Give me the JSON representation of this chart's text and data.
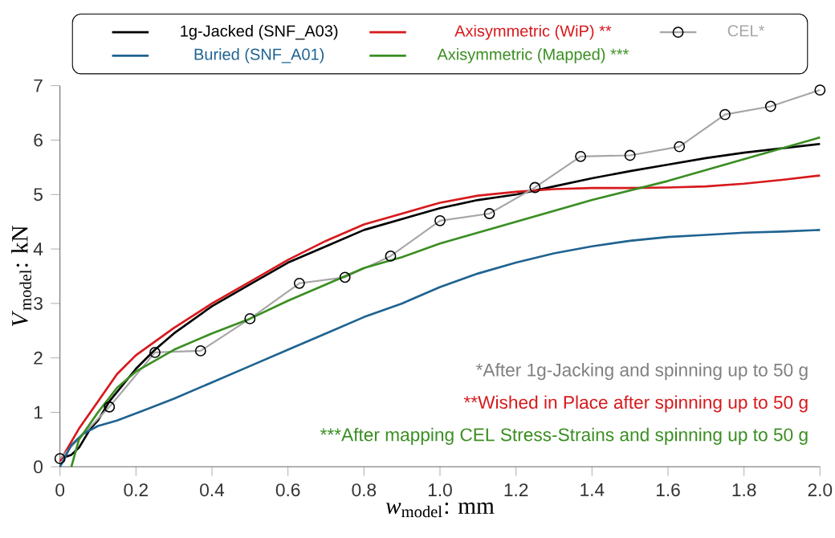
{
  "chart_data": {
    "type": "line",
    "xlabel": "*w*$_{model}$: mm",
    "ylabel": "*V*$_{model}$: kN",
    "xlim": [
      0,
      2.0
    ],
    "ylim": [
      0,
      7
    ],
    "xticks": [
      0,
      0.2,
      0.4,
      0.6,
      0.8,
      {
        "value": 1.0,
        "label": "1.0"
      },
      1.2,
      1.4,
      1.6,
      1.8,
      {
        "value": 2.0,
        "label": "2.0"
      }
    ],
    "yticks": [
      0,
      1,
      2,
      3,
      4,
      5,
      6,
      7
    ],
    "legend": "top",
    "grid": false,
    "marker": "none",
    "line_style": "solid",
    "annotations": [
      "*After 1g-Jacking and spinning up to 50 g",
      "**Wished in Place after spinning up to 50 g",
      "***After mapping CEL Stress-Strains and spinning up to 50 g"
    ],
    "series": [
      {
        "name": "1g-Jacked (SNF_A03)",
        "color": "#000000",
        "x": [
          0,
          0.03,
          0.05,
          0.08,
          0.1,
          0.13,
          0.2,
          0.25,
          0.3,
          0.4,
          0.5,
          0.6,
          0.7,
          0.8,
          0.9,
          1.0,
          1.1,
          1.2,
          1.3,
          1.4,
          1.5,
          1.6,
          1.7,
          1.8,
          1.9,
          2.0
        ],
        "values": [
          0.15,
          0.22,
          0.35,
          0.7,
          0.85,
          1.2,
          1.8,
          2.15,
          2.45,
          2.95,
          3.35,
          3.75,
          4.05,
          4.35,
          4.55,
          4.75,
          4.9,
          5.0,
          5.15,
          5.3,
          5.43,
          5.55,
          5.67,
          5.77,
          5.85,
          5.93
        ]
      },
      {
        "name": "Axisymmetric (WiP) **",
        "color": "#d7191c",
        "x": [
          0,
          0.05,
          0.1,
          0.15,
          0.2,
          0.25,
          0.3,
          0.4,
          0.5,
          0.6,
          0.7,
          0.8,
          0.9,
          1.0,
          1.1,
          1.2,
          1.3,
          1.4,
          1.5,
          1.6,
          1.7,
          1.8,
          1.9,
          2.0
        ],
        "values": [
          0.1,
          0.7,
          1.2,
          1.7,
          2.05,
          2.3,
          2.55,
          3.0,
          3.4,
          3.8,
          4.15,
          4.45,
          4.65,
          4.85,
          4.98,
          5.05,
          5.1,
          5.12,
          5.12,
          5.13,
          5.15,
          5.2,
          5.27,
          5.35
        ]
      },
      {
        "name": "CEL*",
        "color": "#a6a6a6",
        "marker": "circle",
        "x": [
          0,
          0.13,
          0.25,
          0.37,
          0.5,
          0.63,
          0.75,
          0.87,
          1.0,
          1.13,
          1.25,
          1.37,
          1.5,
          1.63,
          1.75,
          1.87,
          2.0
        ],
        "values": [
          0.15,
          1.1,
          2.1,
          2.13,
          2.72,
          3.37,
          3.48,
          3.87,
          4.52,
          4.65,
          5.13,
          5.7,
          5.72,
          5.88,
          6.47,
          6.62,
          6.92
        ]
      },
      {
        "name": "Buried     (SNF_A01)",
        "color": "#1f6391",
        "x": [
          0,
          0.03,
          0.06,
          0.1,
          0.15,
          0.2,
          0.3,
          0.4,
          0.5,
          0.6,
          0.7,
          0.8,
          0.9,
          1.0,
          1.1,
          1.2,
          1.3,
          1.4,
          1.5,
          1.6,
          1.7,
          1.8,
          1.9,
          2.0
        ],
        "values": [
          0,
          0.4,
          0.6,
          0.75,
          0.85,
          0.98,
          1.25,
          1.55,
          1.85,
          2.15,
          2.45,
          2.75,
          3.0,
          3.3,
          3.55,
          3.75,
          3.92,
          4.05,
          4.15,
          4.22,
          4.26,
          4.3,
          4.32,
          4.35
        ]
      },
      {
        "name": "Axisymmetric (Mapped) ***",
        "color": "#3a8e22",
        "x": [
          0.03,
          0.05,
          0.1,
          0.15,
          0.2,
          0.3,
          0.4,
          0.5,
          0.6,
          0.7,
          0.8,
          0.9,
          1.0,
          1.2,
          1.4,
          1.6,
          1.8,
          2.0
        ],
        "values": [
          0,
          0.5,
          1.0,
          1.45,
          1.75,
          2.15,
          2.45,
          2.72,
          3.05,
          3.35,
          3.65,
          3.85,
          4.1,
          4.5,
          4.9,
          5.25,
          5.65,
          6.05
        ]
      }
    ]
  }
}
